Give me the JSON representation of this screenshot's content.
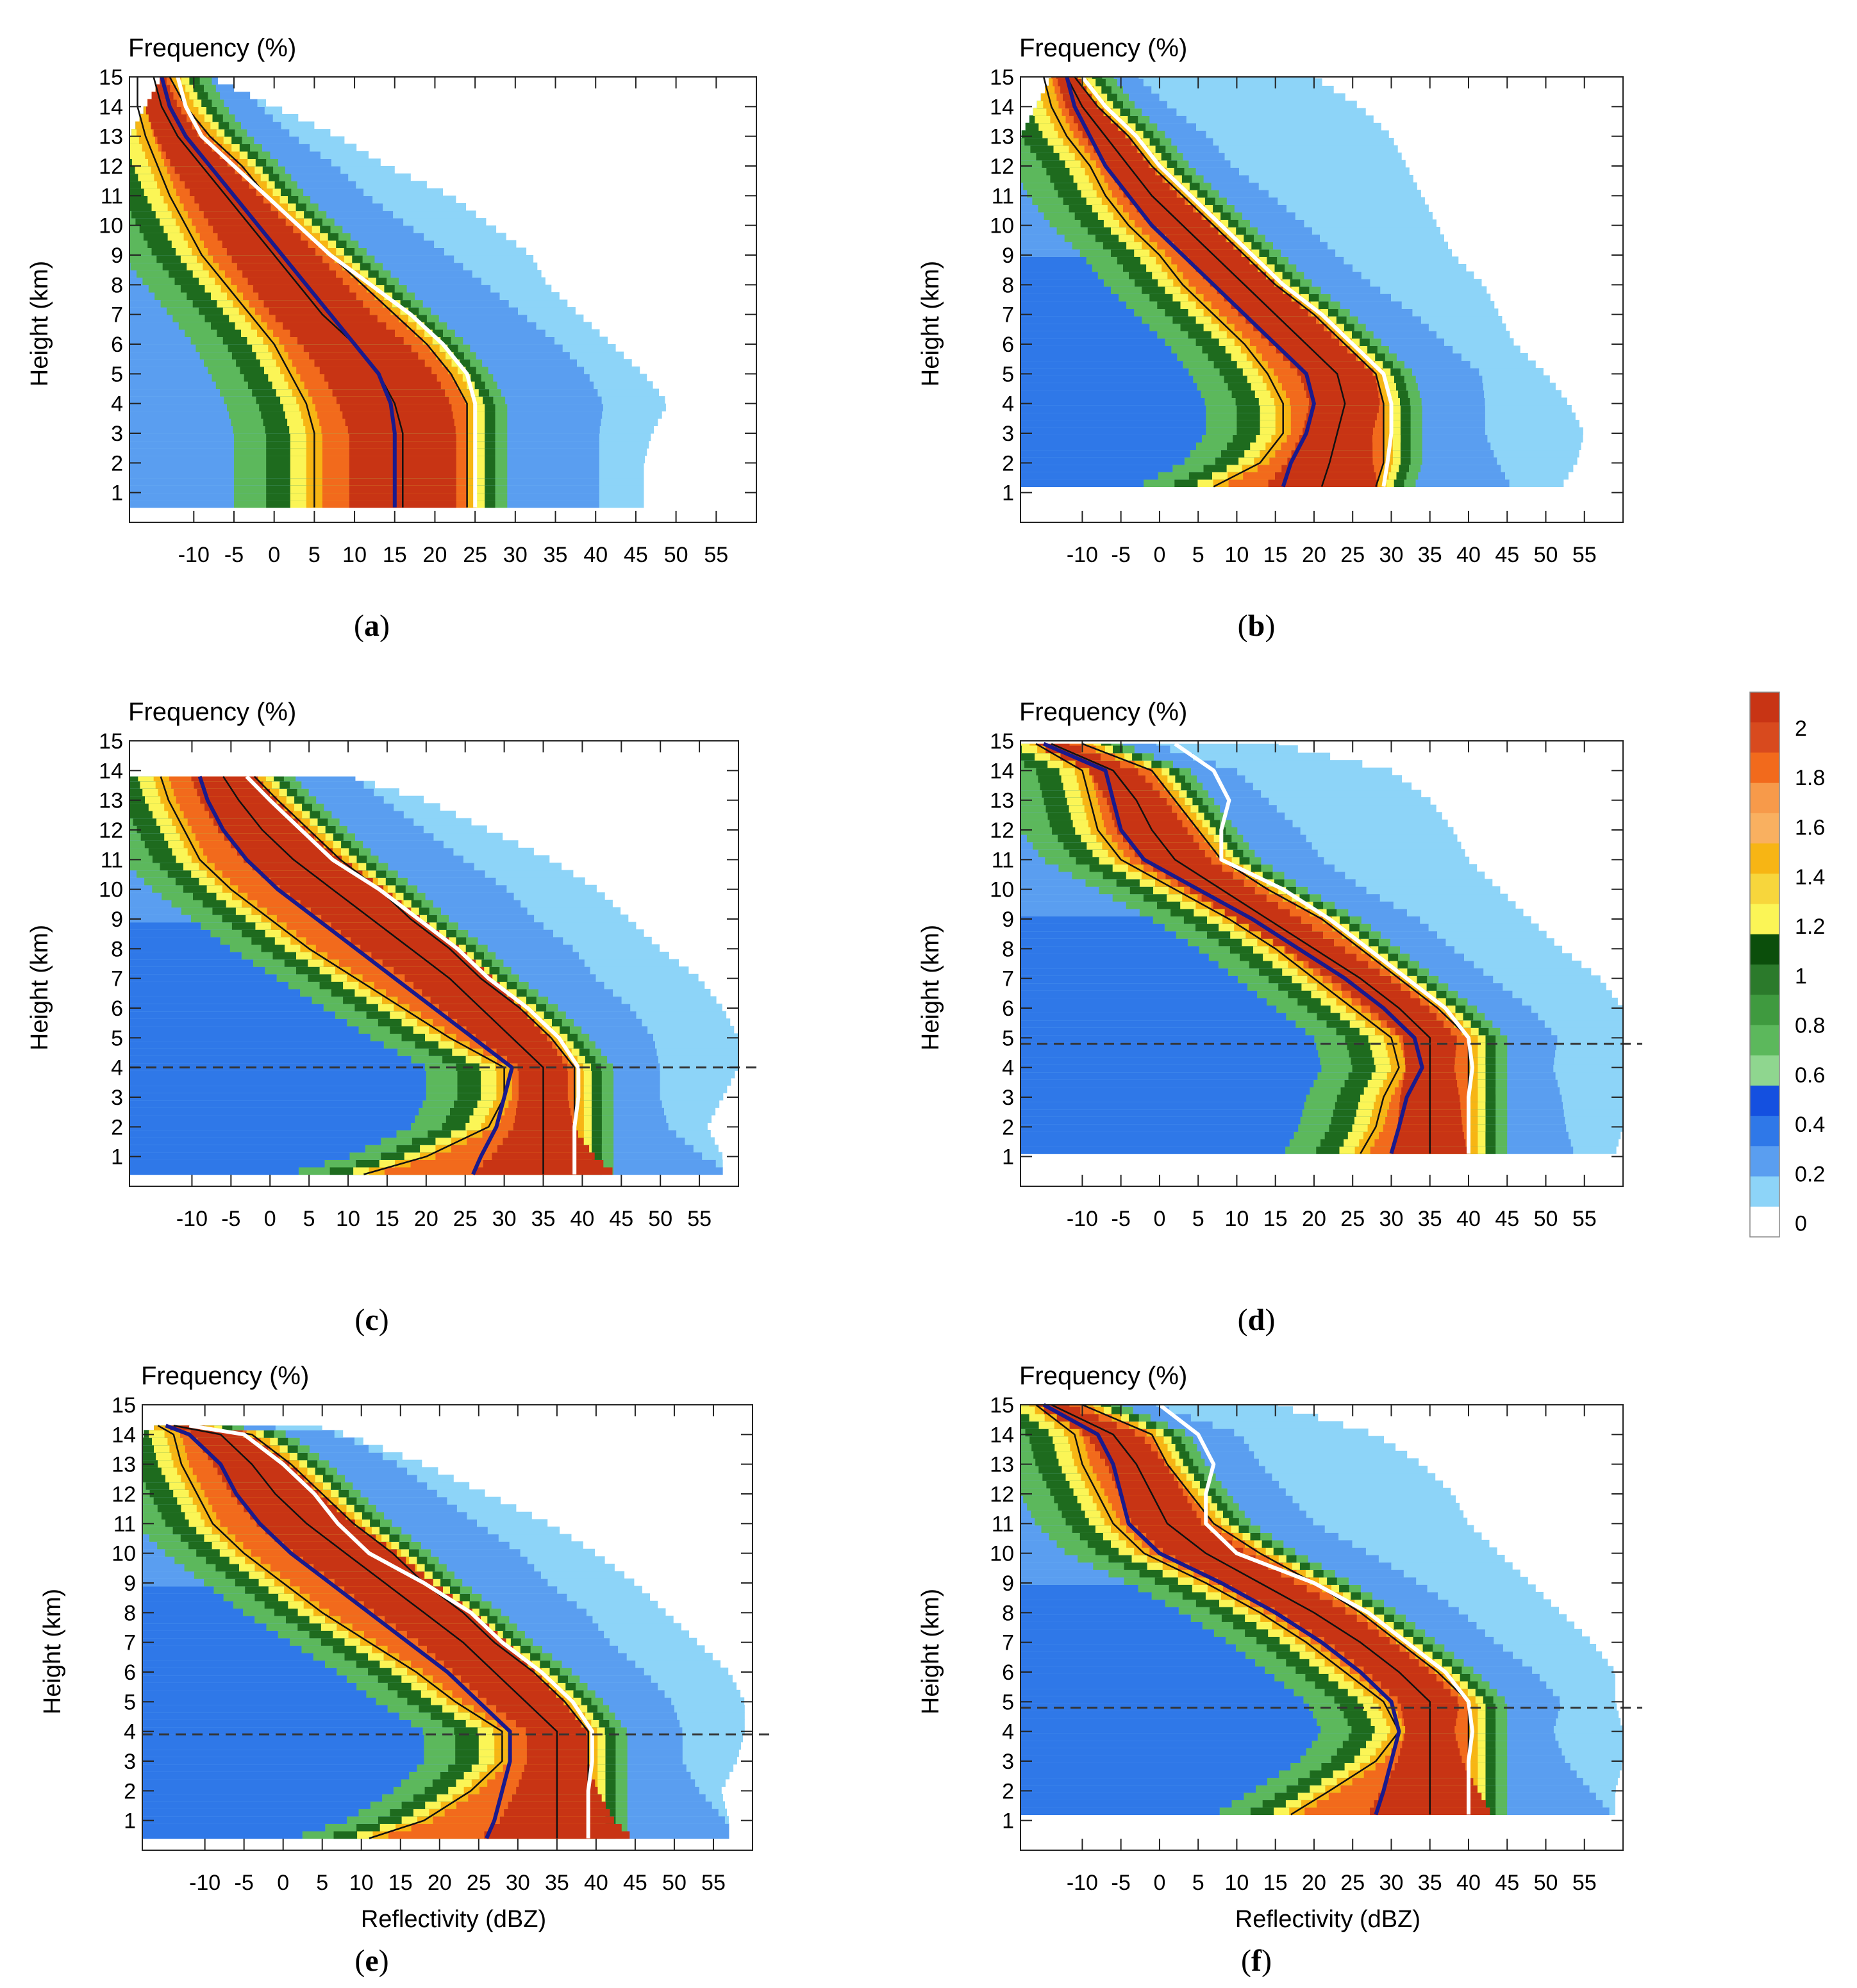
{
  "figure": {
    "panel_title": "Frequency (%)",
    "xlabel": "Reflectivity (dBZ)",
    "ylabel": "Height (km)"
  },
  "colorbar": {
    "levels": [
      "2",
      "1.8",
      "1.6",
      "1.4",
      "1.2",
      "1",
      "0.8",
      "0.6",
      "0.4",
      "0.2",
      "0"
    ],
    "colors": [
      "#c83414",
      "#d84a1e",
      "#f26a1c",
      "#f79a4a",
      "#f9b060",
      "#f7b514",
      "#f7d63c",
      "#fbf556",
      "#0b4e0b",
      "#2b7a2b",
      "#3f9a3f",
      "#5cb85c",
      "#8fd68f",
      "#1450e0",
      "#2f78e8",
      "#5a9ef0",
      "#8dd4f8",
      "#ffffff"
    ]
  },
  "chart_data": [
    {
      "panel": "a",
      "caption": "a",
      "type": "heatmap",
      "title": "Frequency (%)",
      "xlabel": "",
      "ylabel": "Height (km)",
      "xlim": [
        -18,
        60
      ],
      "ylim": [
        0,
        15
      ],
      "y_bottom": 0.5,
      "y_top": 15,
      "xticks": [
        -10,
        -5,
        0,
        5,
        10,
        15,
        20,
        25,
        30,
        35,
        40,
        45,
        50,
        55
      ],
      "yticks": [
        1,
        2,
        3,
        4,
        5,
        6,
        7,
        8,
        9,
        10,
        11,
        12,
        13,
        14,
        15
      ],
      "heights": [
        0.5,
        1,
        2,
        3,
        4,
        5,
        6,
        7,
        8,
        9,
        10,
        11,
        12,
        13,
        14,
        15
      ],
      "profiles": {
        "mean": [
          15,
          15,
          15,
          15,
          14.5,
          13,
          10,
          7,
          4,
          1,
          -2,
          -5,
          -8,
          -11,
          -13,
          -14
        ],
        "p50": [
          16,
          16,
          16,
          16,
          15,
          13,
          10,
          6,
          3,
          0,
          -3,
          -6,
          -9,
          -12,
          -14,
          -15
        ],
        "p25": [
          5,
          5,
          5,
          5,
          4,
          2,
          0,
          -3,
          -6,
          -9,
          -11,
          -13,
          -14.5,
          -16,
          -17,
          -17
        ],
        "p75": [
          24,
          24,
          24,
          24,
          24,
          22,
          19,
          15,
          11,
          7,
          3,
          -1,
          -4,
          -8,
          -11,
          -13
        ],
        "p90": [
          25,
          25,
          25,
          25,
          25,
          24,
          21,
          17,
          12,
          7,
          3,
          -1,
          -5,
          -9,
          -11,
          -12
        ]
      },
      "edges": {
        "left": [
          -18,
          -18,
          -18,
          -18,
          -18,
          -18,
          -18,
          -18,
          -18,
          -18,
          -18,
          -18,
          -18,
          -18,
          -16,
          -14
        ],
        "right": [
          46,
          46,
          46,
          47,
          49,
          46,
          42,
          38,
          34,
          32,
          27,
          22,
          14,
          8,
          0,
          -8
        ]
      },
      "melting_layer_km": null
    },
    {
      "panel": "b",
      "caption": "b",
      "type": "heatmap",
      "title": "Frequency (%)",
      "xlabel": "",
      "ylabel": "Height (km)",
      "xlim": [
        -18,
        60
      ],
      "ylim": [
        0,
        15
      ],
      "y_bottom": 1.2,
      "y_top": 15,
      "xticks": [
        -10,
        -5,
        0,
        5,
        10,
        15,
        20,
        25,
        30,
        35,
        40,
        45,
        50,
        55
      ],
      "yticks": [
        1,
        2,
        3,
        4,
        5,
        6,
        7,
        8,
        9,
        10,
        11,
        12,
        13,
        14,
        15
      ],
      "heights": [
        1.2,
        2,
        3,
        4,
        5,
        6,
        7,
        8,
        9,
        10,
        11,
        12,
        13,
        14,
        15
      ],
      "profiles": {
        "mean": [
          16,
          17,
          19,
          20,
          19,
          15,
          11,
          7,
          3,
          -1,
          -4,
          -7,
          -9,
          -11,
          -12
        ],
        "p50": [
          21,
          22,
          23,
          24,
          23,
          19,
          15,
          11,
          7,
          3,
          -1,
          -4,
          -7,
          -10,
          -12
        ],
        "p25": [
          7,
          13,
          16,
          16,
          14,
          11,
          7,
          3,
          0,
          -4,
          -7,
          -9,
          -12,
          -14,
          -15
        ],
        "p75": [
          28,
          29,
          29,
          29,
          28,
          24,
          20,
          15,
          11,
          7,
          3,
          -1,
          -4,
          -8,
          -11
        ],
        "p90": [
          29,
          29.5,
          30,
          30,
          29,
          25,
          21,
          16,
          12,
          8,
          4,
          0,
          -3,
          -7,
          -10
        ]
      },
      "edges": {
        "left": [
          -18,
          -18,
          -18,
          -18,
          -18,
          -18,
          -18,
          -18,
          -18,
          -18,
          -18,
          -18,
          -18,
          -16,
          -14
        ],
        "right": [
          52,
          54,
          55,
          53,
          50,
          46,
          44,
          42,
          38,
          36,
          34,
          32,
          30,
          26,
          20
        ]
      },
      "melting_layer_km": null
    },
    {
      "panel": "c",
      "caption": "c",
      "type": "heatmap",
      "title": "Frequency (%)",
      "xlabel": "",
      "ylabel": "Height (km)",
      "xlim": [
        -18,
        60
      ],
      "ylim": [
        0,
        15
      ],
      "y_bottom": 0.4,
      "y_top": 13.8,
      "xticks": [
        -10,
        -5,
        0,
        5,
        10,
        15,
        20,
        25,
        30,
        35,
        40,
        45,
        50,
        55
      ],
      "yticks": [
        1,
        2,
        3,
        4,
        5,
        6,
        7,
        8,
        9,
        10,
        11,
        12,
        13,
        14,
        15
      ],
      "heights": [
        0.4,
        1,
        2,
        3,
        4,
        5,
        6,
        7,
        8,
        9,
        10,
        11,
        12,
        13,
        13.8
      ],
      "profiles": {
        "mean": [
          26,
          27,
          29,
          30,
          31,
          26,
          21,
          16,
          11,
          6,
          1,
          -3,
          -6,
          -8,
          -9
        ],
        "p50": [
          35,
          35,
          35,
          35,
          35,
          31,
          27,
          23,
          18,
          13,
          8,
          3,
          -1,
          -4,
          -6
        ],
        "p25": [
          12,
          20,
          28,
          30,
          30,
          23,
          17,
          11,
          5,
          0,
          -5,
          -9,
          -11,
          -13,
          -14
        ],
        "p75": [
          39,
          39,
          39,
          39,
          39,
          36,
          32,
          27,
          23,
          18,
          14,
          9,
          5,
          1,
          -2
        ],
        "p90": [
          39,
          39,
          39,
          39.5,
          39.5,
          37,
          33,
          28,
          24,
          19,
          14,
          8,
          4,
          0,
          -3
        ]
      },
      "edges": {
        "left": [
          -18,
          -18,
          -18,
          -18,
          -18,
          -18,
          -18,
          -18,
          -18,
          -18,
          -18,
          -18,
          -18,
          -18,
          -18
        ],
        "right": [
          58,
          58,
          56,
          58,
          60,
          60,
          58,
          55,
          50,
          46,
          42,
          36,
          28,
          20,
          10
        ]
      },
      "melting_layer_km": 4.0
    },
    {
      "panel": "d",
      "caption": "d",
      "type": "heatmap",
      "title": "Frequency (%)",
      "xlabel": "",
      "ylabel": "Height (km)",
      "xlim": [
        -18,
        60
      ],
      "ylim": [
        0,
        15
      ],
      "y_bottom": 1.1,
      "y_top": 14.9,
      "xticks": [
        -10,
        -5,
        0,
        5,
        10,
        15,
        20,
        25,
        30,
        35,
        40,
        45,
        50,
        55
      ],
      "yticks": [
        1,
        2,
        3,
        4,
        5,
        6,
        7,
        8,
        9,
        10,
        11,
        12,
        13,
        14,
        15
      ],
      "heights": [
        1.1,
        2,
        3,
        4,
        5,
        6,
        7,
        8,
        9,
        10,
        11,
        12,
        13,
        14,
        14.9
      ],
      "profiles": {
        "mean": [
          30,
          31,
          32,
          34,
          33,
          29,
          24,
          18,
          12,
          5,
          -2,
          -5,
          -6,
          -7,
          -15
        ],
        "p50": [
          35,
          35,
          35,
          35,
          35,
          31,
          26,
          20,
          14,
          8,
          2,
          -1,
          -3,
          -6,
          -14
        ],
        "p25": [
          26,
          28,
          29,
          31,
          30,
          25,
          20,
          15,
          9,
          2,
          -5,
          -8,
          -9,
          -10,
          -16
        ],
        "p75": [
          40,
          40,
          40,
          40,
          40,
          36,
          31,
          26,
          21,
          14,
          8,
          5,
          2,
          -1,
          -10
        ],
        "p90": [
          40,
          40,
          40,
          40.5,
          40,
          37,
          32,
          27,
          22,
          16,
          8,
          8,
          9,
          7,
          2
        ]
      },
      "edges": {
        "left": [
          -18,
          -18,
          -18,
          -18,
          -18,
          -18,
          -18,
          -18,
          -18,
          -18,
          -18,
          -18,
          -18,
          -18,
          -18
        ],
        "right": [
          59,
          60,
          60,
          60,
          60,
          60,
          57,
          52,
          48,
          44,
          40,
          38,
          35,
          30,
          15
        ]
      },
      "melting_layer_km": 4.8
    },
    {
      "panel": "e",
      "caption": "e",
      "type": "heatmap",
      "title": "Frequency (%)",
      "xlabel": "Reflectivity (dBZ)",
      "ylabel": "Height (km)",
      "xlim": [
        -18,
        60
      ],
      "ylim": [
        0,
        15
      ],
      "y_bottom": 0.4,
      "y_top": 14.3,
      "xticks": [
        -10,
        -5,
        0,
        5,
        10,
        15,
        20,
        25,
        30,
        35,
        40,
        45,
        50,
        55
      ],
      "yticks": [
        1,
        2,
        3,
        4,
        5,
        6,
        7,
        8,
        9,
        10,
        11,
        12,
        13,
        14,
        15
      ],
      "heights": [
        0.4,
        1,
        2,
        3,
        4,
        5,
        6,
        7,
        8,
        9,
        10,
        11,
        12,
        13,
        14,
        14.3
      ],
      "profiles": {
        "mean": [
          26,
          27,
          28,
          29,
          29,
          25,
          21,
          16,
          11,
          6,
          1,
          -3,
          -6,
          -8,
          -12,
          -15
        ],
        "p50": [
          35,
          35,
          35,
          35,
          35,
          31,
          27,
          23,
          18,
          13,
          8,
          3,
          -1,
          -4,
          -8,
          -14
        ],
        "p25": [
          11,
          18,
          24,
          28,
          28,
          22,
          17,
          11,
          5,
          0,
          -5,
          -9,
          -11,
          -13,
          -14,
          -16
        ],
        "p75": [
          39,
          39,
          39,
          39,
          39,
          36,
          32,
          27,
          23,
          18,
          14,
          9,
          5,
          1,
          -4,
          -12
        ],
        "p90": [
          39,
          39,
          39,
          39.5,
          39.5,
          37,
          33,
          28,
          24,
          18,
          11,
          7,
          4,
          0,
          -5,
          -12
        ]
      },
      "edges": {
        "left": [
          -18,
          -18,
          -18,
          -18,
          -18,
          -18,
          -18,
          -18,
          -18,
          -18,
          -18,
          -18,
          -18,
          -18,
          -18,
          -16
        ],
        "right": [
          57,
          57,
          56,
          58,
          59,
          59,
          57,
          53,
          49,
          45,
          40,
          34,
          26,
          18,
          8,
          4
        ]
      },
      "melting_layer_km": 3.9
    },
    {
      "panel": "f",
      "caption": "f",
      "type": "heatmap",
      "title": "Frequency (%)",
      "xlabel": "Reflectivity (dBZ)",
      "ylabel": "Height (km)",
      "xlim": [
        -18,
        60
      ],
      "ylim": [
        0,
        15
      ],
      "y_bottom": 1.2,
      "y_top": 15,
      "xticks": [
        -10,
        -5,
        0,
        5,
        10,
        15,
        20,
        25,
        30,
        35,
        40,
        45,
        50,
        55
      ],
      "yticks": [
        1,
        2,
        3,
        4,
        5,
        6,
        7,
        8,
        9,
        10,
        11,
        12,
        13,
        14,
        15
      ],
      "heights": [
        1.2,
        2,
        3,
        4,
        5,
        6,
        7,
        8,
        9,
        10,
        11,
        12,
        13,
        14,
        15
      ],
      "profiles": {
        "mean": [
          28,
          29,
          30,
          31,
          30,
          26,
          21,
          15,
          8,
          0,
          -4,
          -5,
          -6,
          -8,
          -15
        ],
        "p50": [
          35,
          35,
          35,
          35,
          35,
          31,
          26,
          20,
          13,
          6,
          1,
          -1,
          -3,
          -6,
          -14
        ],
        "p25": [
          17,
          22,
          28,
          31,
          29,
          24,
          19,
          13,
          6,
          -2,
          -6,
          -8,
          -10,
          -11,
          -16
        ],
        "p75": [
          40,
          40,
          40,
          40,
          40,
          36,
          31,
          26,
          20,
          13,
          7,
          4,
          1,
          -1,
          -10
        ],
        "p90": [
          40,
          40,
          40,
          40.5,
          40,
          37,
          32,
          27,
          20,
          10,
          6,
          6,
          7,
          5,
          0
        ]
      },
      "edges": {
        "left": [
          -18,
          -18,
          -18,
          -18,
          -18,
          -18,
          -18,
          -18,
          -18,
          -18,
          -18,
          -18,
          -18,
          -18,
          -18
        ],
        "right": [
          59,
          59,
          60,
          60,
          59,
          59,
          56,
          52,
          48,
          44,
          40,
          38,
          34,
          28,
          15
        ]
      },
      "melting_layer_km": 4.8
    }
  ]
}
